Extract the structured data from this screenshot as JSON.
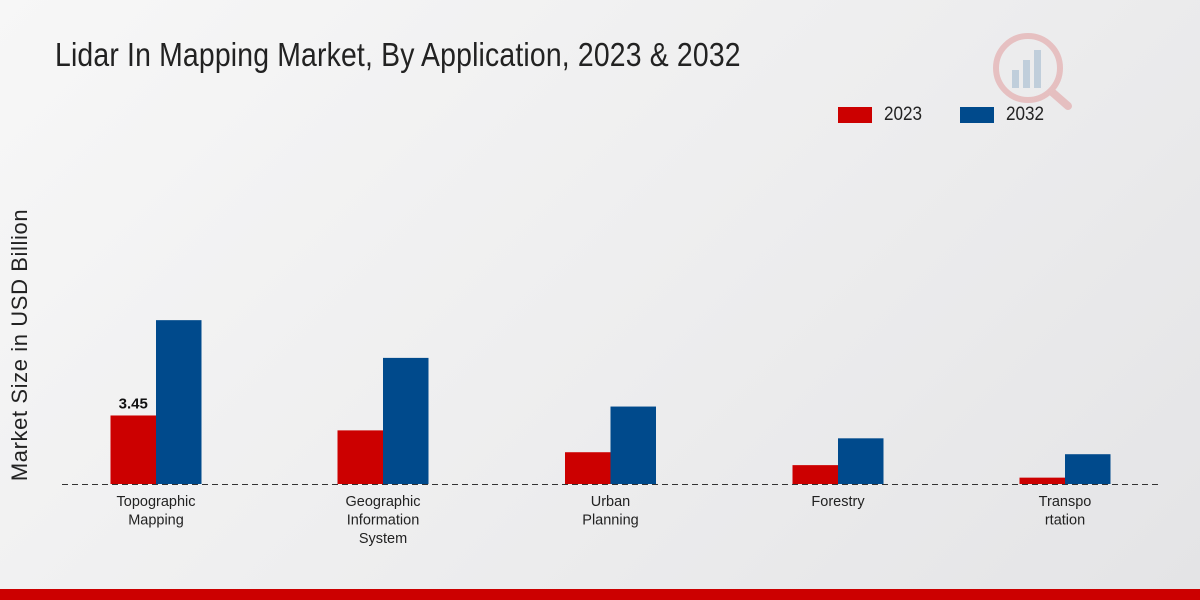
{
  "colors": {
    "series_2023": "#cc0000",
    "series_2032": "#004a8c",
    "accent": "#cc0000"
  },
  "chart_data": {
    "type": "bar",
    "title": "Lidar In Mapping Market, By Application, 2023 & 2032",
    "ylabel": "Market Size in USD Billion",
    "xlabel": "",
    "categories": [
      [
        "Topographic",
        "Mapping"
      ],
      [
        "Geographic",
        "Information",
        "System"
      ],
      [
        "Urban",
        "Planning"
      ],
      [
        "Forestry"
      ],
      [
        "Transpo",
        "rtation"
      ]
    ],
    "series": [
      {
        "name": "2023",
        "values": [
          3.45,
          2.7,
          1.6,
          0.95,
          0.32
        ]
      },
      {
        "name": "2032",
        "values": [
          8.25,
          6.35,
          3.9,
          2.3,
          1.5
        ]
      }
    ],
    "ylim": [
      0,
      14.3
    ],
    "data_labels": [
      {
        "series": 0,
        "index": 0,
        "text": "3.45"
      }
    ],
    "legend_position": "top-right",
    "grid": false
  }
}
